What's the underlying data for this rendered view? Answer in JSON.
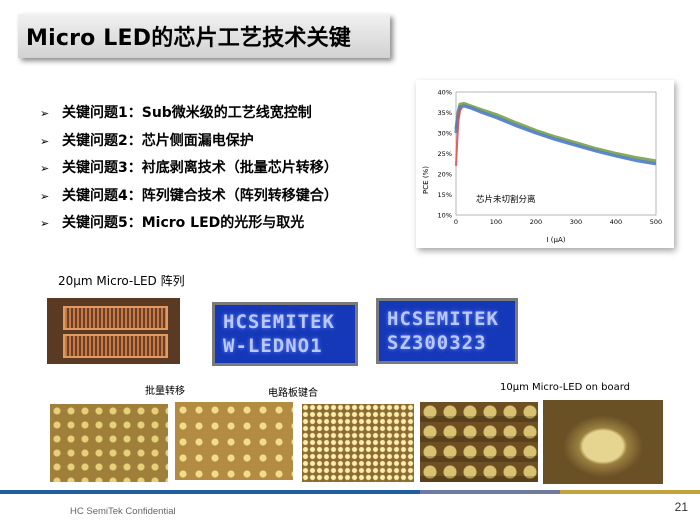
{
  "title": "Micro LED的芯片工艺技术关键",
  "issues": [
    {
      "label": "关键问题1：Sub微米级的工艺线宽控制"
    },
    {
      "label": "关键问题2：芯片侧面漏电保护"
    },
    {
      "label": "关键问题3：衬底剥离技术（批量芯片转移）"
    },
    {
      "label": "关键问题4：阵列键合技术（阵列转移键合）"
    },
    {
      "label": "关键问题5：Micro LED的光形与取光"
    }
  ],
  "bullet_icon": "arrow-bullet-icon",
  "chart_data": {
    "type": "line",
    "xlabel": "I (μA)",
    "ylabel": "PCE (%)",
    "xlim": [
      0,
      500
    ],
    "ylim": [
      10,
      40
    ],
    "x_ticks": [
      "0",
      "100",
      "200",
      "300",
      "400",
      "500"
    ],
    "y_ticks": [
      "10%",
      "15%",
      "20%",
      "25%",
      "30%",
      "35%",
      "40%"
    ],
    "annotation": "芯片未切割分离",
    "grid": false,
    "series": [
      {
        "color": "#7aa04a",
        "x": [
          0,
          5,
          10,
          20,
          40,
          60,
          100,
          150,
          200,
          250,
          300,
          350,
          400,
          450,
          500
        ],
        "y": [
          31,
          35,
          37,
          37.2,
          36.5,
          35.8,
          34.5,
          32.5,
          30.6,
          29,
          27.6,
          26.2,
          25,
          24,
          23.2
        ]
      },
      {
        "color": "#4a7bc8",
        "x": [
          0,
          5,
          10,
          20,
          40,
          60,
          100,
          150,
          200,
          250,
          300,
          350,
          400,
          450,
          500
        ],
        "y": [
          30,
          34,
          36.3,
          36.6,
          36,
          35.2,
          33.8,
          31.8,
          30,
          28.4,
          27,
          25.6,
          24.4,
          23.3,
          22.5
        ]
      },
      {
        "color": "#e05050",
        "x": [
          0,
          3,
          6,
          10,
          15
        ],
        "y": [
          22,
          28,
          33,
          35.5,
          36.2
        ]
      }
    ]
  },
  "captions": {
    "array_20um": "20μm Micro-LED 阵列",
    "batch_transfer": "批量转移",
    "board_bonding": "电路板键合",
    "on_board_10um": "10μm Micro-LED on board"
  },
  "led_display_1": {
    "line1": "HCSEMITEK",
    "line2": "W-LEDNO1"
  },
  "led_display_2": {
    "line1": "HCSEMITEK",
    "line2": "SZ300323"
  },
  "footer": {
    "company": "HC SemiTek Confidential",
    "page_number": "21"
  },
  "colors": {
    "footer_blue": "#1f5f9f",
    "footer_gold": "#c4a23d",
    "led_blue": "#1438b8"
  }
}
